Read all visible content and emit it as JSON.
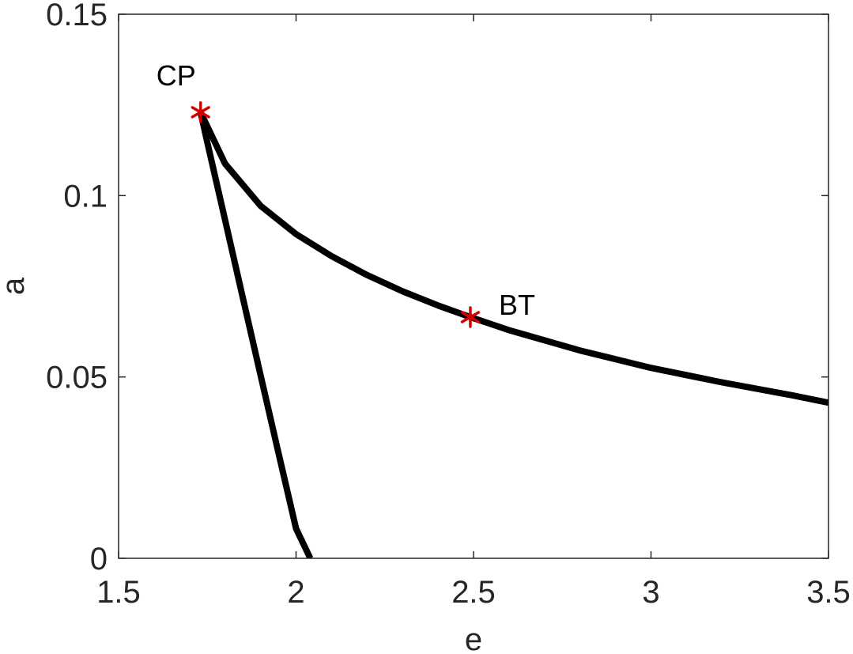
{
  "chart_data": {
    "type": "line",
    "title": "",
    "xlabel": "e",
    "ylabel": "a",
    "xlim": [
      1.5,
      3.5
    ],
    "ylim": [
      0,
      0.15
    ],
    "xticks": [
      1.5,
      2,
      2.5,
      3,
      3.5
    ],
    "xtick_labels": [
      "1.5",
      "2",
      "2.5",
      "3",
      "3.5"
    ],
    "yticks": [
      0,
      0.05,
      0.1,
      0.15
    ],
    "ytick_labels": [
      "0",
      "0.05",
      "0.1",
      "0.15"
    ],
    "grid": false,
    "series": [
      {
        "color": "#000000",
        "x": [
          1.731,
          1.75,
          1.8,
          1.85,
          1.9,
          1.95,
          2.0,
          2.04
        ],
        "y": [
          0.123,
          0.1146,
          0.0933,
          0.0718,
          0.0505,
          0.0293,
          0.0082,
          0.0
        ]
      },
      {
        "color": "#000000",
        "x": [
          1.731,
          1.8,
          1.9,
          2.0,
          2.1,
          2.2,
          2.3,
          2.4,
          2.491,
          2.6,
          2.8,
          3.0,
          3.2,
          3.4,
          3.5
        ],
        "y": [
          0.123,
          0.1088,
          0.0972,
          0.0894,
          0.0833,
          0.0781,
          0.0736,
          0.0697,
          0.0665,
          0.0629,
          0.0573,
          0.0525,
          0.0485,
          0.0449,
          0.0429
        ]
      }
    ],
    "points": [
      {
        "label": "CP",
        "x": 1.731,
        "y": 0.123,
        "color": "#d40000"
      },
      {
        "label": "BT",
        "x": 2.491,
        "y": 0.0665,
        "color": "#d40000"
      }
    ]
  }
}
